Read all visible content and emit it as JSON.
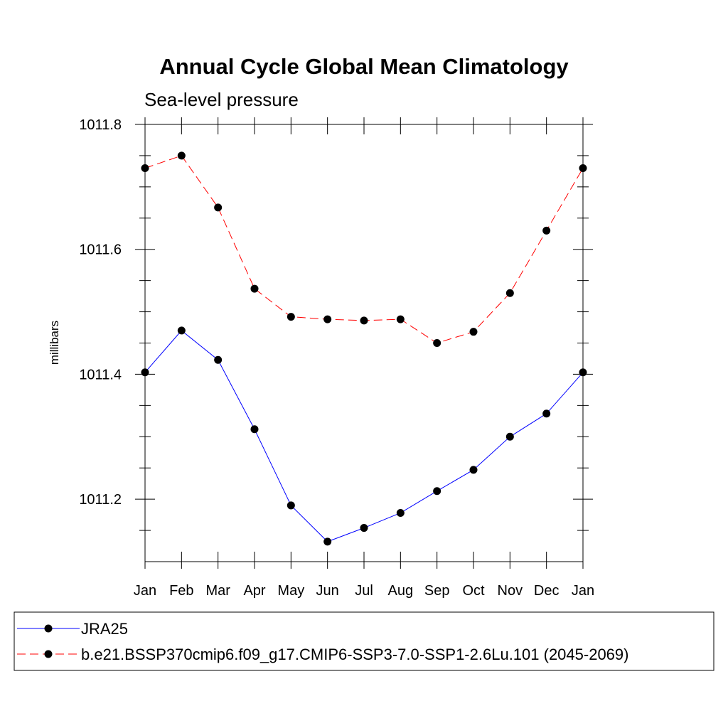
{
  "chart_data": {
    "type": "line",
    "title": "Annual Cycle Global Mean Climatology",
    "subtitle": "Sea-level pressure",
    "ylabel": "millibars",
    "xlabel": "",
    "ylim": [
      1011.1,
      1011.8
    ],
    "yticks": [
      "1011.2",
      "1011.4",
      "1011.6",
      "1011.8"
    ],
    "yticks_values": [
      1011.2,
      1011.4,
      1011.6,
      1011.8
    ],
    "categories": [
      "Jan",
      "Feb",
      "Mar",
      "Apr",
      "May",
      "Jun",
      "Jul",
      "Aug",
      "Sep",
      "Oct",
      "Nov",
      "Dec",
      "Jan"
    ],
    "grid": false,
    "legend_position": "bottom",
    "series": [
      {
        "name": "JRA25",
        "color": "#0000ff",
        "dash": "solid",
        "values": [
          1011.403,
          1011.47,
          1011.423,
          1011.312,
          1011.19,
          1011.132,
          1011.154,
          1011.178,
          1011.213,
          1011.247,
          1011.3,
          1011.337,
          1011.403
        ]
      },
      {
        "name": "b.e21.BSSP370cmip6.f09_g17.CMIP6-SSP3-7.0-SSP1-2.6Lu.101 (2045-2069)",
        "color": "#ff0000",
        "dash": "dashed",
        "values": [
          1011.73,
          1011.75,
          1011.667,
          1011.537,
          1011.492,
          1011.488,
          1011.486,
          1011.488,
          1011.45,
          1011.468,
          1011.53,
          1011.63,
          1011.73
        ]
      }
    ]
  }
}
